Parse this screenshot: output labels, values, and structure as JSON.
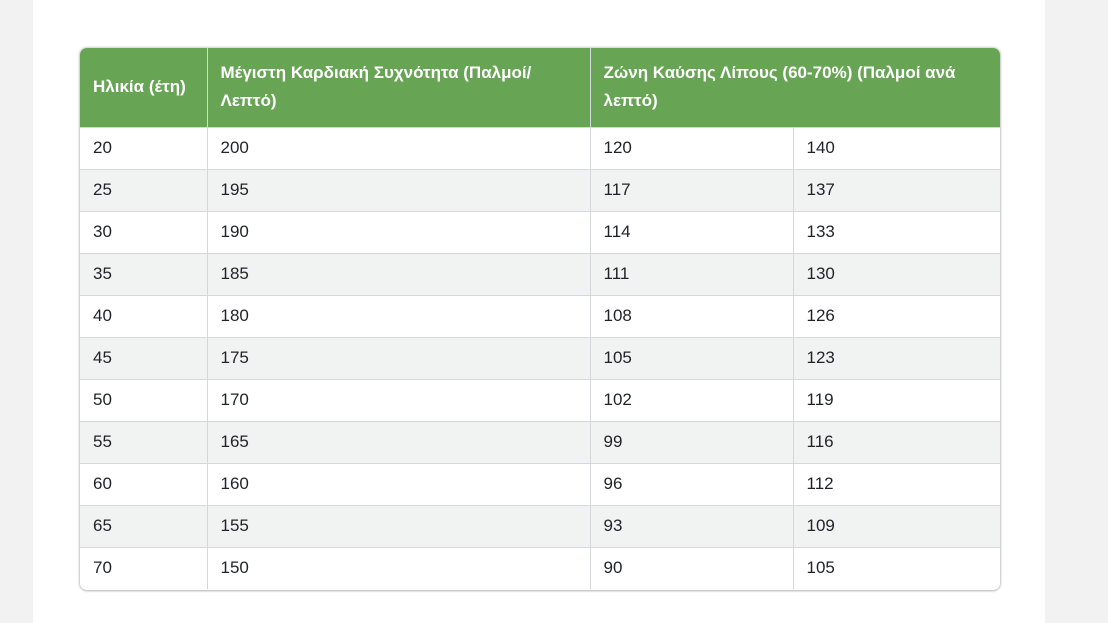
{
  "page": {
    "background": "#ffffff",
    "side_margin_color": "#f1f2f1"
  },
  "table": {
    "header_bg": "#67a454",
    "header_text_color": "#ffffff",
    "row_alt_bg": "#f1f2f2",
    "border_color": "#d5d8da",
    "text_color": "#1f2328",
    "headers": [
      {
        "label": "Ηλικία (έτη)"
      },
      {
        "label": "Μέγιστη Καρδιακή Συχνότητα (Παλμοί/ Λεπτό)"
      },
      {
        "label": "Ζώνη Καύσης Λίπους (60-70%) (Παλμοί ανά λεπτό)"
      }
    ],
    "rows": [
      [
        "20",
        "200",
        "120",
        "140"
      ],
      [
        "25",
        "195",
        "117",
        "137"
      ],
      [
        "30",
        "190",
        "114",
        "133"
      ],
      [
        "35",
        "185",
        "111",
        "130"
      ],
      [
        "40",
        "180",
        "108",
        "126"
      ],
      [
        "45",
        "175",
        "105",
        "123"
      ],
      [
        "50",
        "170",
        "102",
        "119"
      ],
      [
        "55",
        "165",
        "99",
        "116"
      ],
      [
        "60",
        "160",
        "96",
        "112"
      ],
      [
        "65",
        "155",
        "93",
        "109"
      ],
      [
        "70",
        "150",
        "90",
        "105"
      ]
    ]
  },
  "chart_data": {
    "type": "table",
    "columns": [
      "Ηλικία (έτη)",
      "Μέγιστη Καρδιακή Συχνότητα (Παλμοί/ Λεπτό)",
      "Ζώνη Καύσης Λίπους (60-70%) (Παλμοί ανά λεπτό)"
    ],
    "third_column_spans": 2,
    "rows": [
      [
        20,
        200,
        120,
        140
      ],
      [
        25,
        195,
        117,
        137
      ],
      [
        30,
        190,
        114,
        133
      ],
      [
        35,
        185,
        111,
        130
      ],
      [
        40,
        180,
        108,
        126
      ],
      [
        45,
        175,
        105,
        123
      ],
      [
        50,
        170,
        102,
        119
      ],
      [
        55,
        165,
        99,
        116
      ],
      [
        60,
        160,
        96,
        112
      ],
      [
        65,
        155,
        93,
        109
      ],
      [
        70,
        150,
        90,
        105
      ]
    ]
  }
}
